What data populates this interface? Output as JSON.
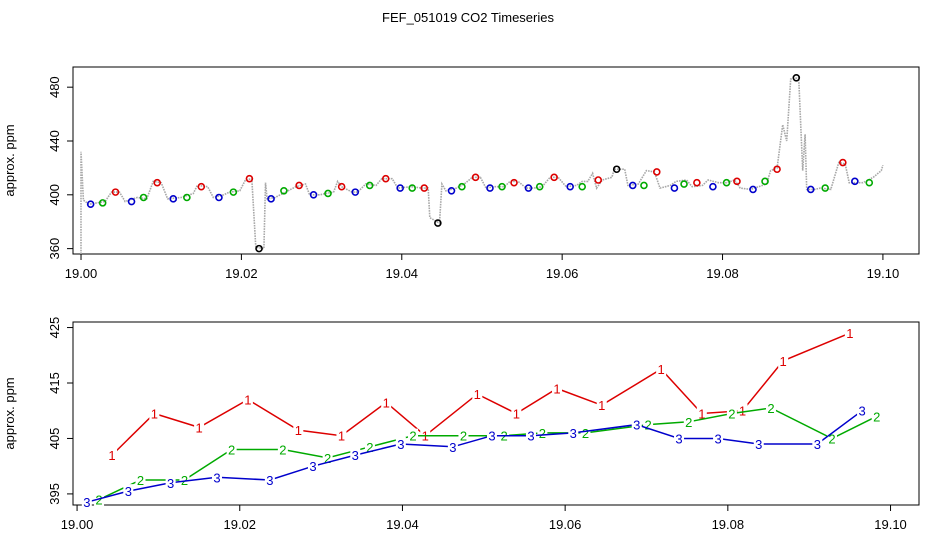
{
  "title": "FEF_051019  CO2 Timeseries",
  "chart_data": [
    {
      "type": "line",
      "name": "top",
      "ylabel": "approx. ppm",
      "xlim": [
        18.999,
        19.1045
      ],
      "ylim": [
        356,
        495
      ],
      "xticks": [
        19.0,
        19.02,
        19.04,
        19.06,
        19.08,
        19.1
      ],
      "xtick_labels": [
        "19.00",
        "19.02",
        "19.04",
        "19.06",
        "19.08",
        "19.10"
      ],
      "yticks": [
        360,
        400,
        440,
        480
      ],
      "ytick_labels": [
        "360",
        "400",
        "440",
        "480"
      ],
      "trace": [
        [
          19.0,
          356
        ],
        [
          19.0,
          432
        ],
        [
          19.0003,
          396
        ],
        [
          19.001,
          393
        ],
        [
          19.002,
          394
        ],
        [
          19.003,
          395
        ],
        [
          19.0038,
          402
        ],
        [
          19.0048,
          402
        ],
        [
          19.0055,
          395
        ],
        [
          19.007,
          398
        ],
        [
          19.0082,
          397
        ],
        [
          19.009,
          410
        ],
        [
          19.01,
          409
        ],
        [
          19.0108,
          397
        ],
        [
          19.0125,
          398
        ],
        [
          19.014,
          401
        ],
        [
          19.0145,
          407
        ],
        [
          19.0158,
          406
        ],
        [
          19.0165,
          398
        ],
        [
          19.0178,
          400
        ],
        [
          19.0185,
          402
        ],
        [
          19.0198,
          403
        ],
        [
          19.0205,
          411
        ],
        [
          19.0213,
          412
        ],
        [
          19.0218,
          361
        ],
        [
          19.0228,
          360
        ],
        [
          19.023,
          409
        ],
        [
          19.0232,
          397
        ],
        [
          19.0242,
          398
        ],
        [
          19.0255,
          402
        ],
        [
          19.0268,
          406
        ],
        [
          19.028,
          408
        ],
        [
          19.0285,
          400
        ],
        [
          19.0298,
          400
        ],
        [
          19.0305,
          401
        ],
        [
          19.0315,
          402
        ],
        [
          19.032,
          410
        ],
        [
          19.0325,
          406
        ],
        [
          19.0338,
          402
        ],
        [
          19.0345,
          402
        ],
        [
          19.0355,
          408
        ],
        [
          19.0368,
          407
        ],
        [
          19.0375,
          412
        ],
        [
          19.0388,
          412
        ],
        [
          19.0395,
          405
        ],
        [
          19.0412,
          406
        ],
        [
          19.0425,
          405
        ],
        [
          19.0433,
          405
        ],
        [
          19.0435,
          383
        ],
        [
          19.0447,
          379
        ],
        [
          19.045,
          408
        ],
        [
          19.0455,
          403
        ],
        [
          19.0468,
          405
        ],
        [
          19.0478,
          408
        ],
        [
          19.0488,
          413
        ],
        [
          19.0498,
          413
        ],
        [
          19.0505,
          405
        ],
        [
          19.0515,
          406
        ],
        [
          19.0528,
          406
        ],
        [
          19.0535,
          410
        ],
        [
          19.0545,
          410
        ],
        [
          19.0555,
          405
        ],
        [
          19.0565,
          405
        ],
        [
          19.0575,
          406
        ],
        [
          19.0585,
          413
        ],
        [
          19.0595,
          413
        ],
        [
          19.0605,
          406
        ],
        [
          19.0618,
          407
        ],
        [
          19.0625,
          410
        ],
        [
          19.0632,
          410
        ],
        [
          19.0638,
          416
        ],
        [
          19.0643,
          405
        ],
        [
          19.065,
          411
        ],
        [
          19.0662,
          413
        ],
        [
          19.0665,
          419
        ],
        [
          19.0678,
          419
        ],
        [
          19.0682,
          407
        ],
        [
          19.0695,
          408
        ],
        [
          19.0705,
          418
        ],
        [
          19.0715,
          417
        ],
        [
          19.0722,
          405
        ],
        [
          19.0735,
          407
        ],
        [
          19.0742,
          410
        ],
        [
          19.0755,
          411
        ],
        [
          19.0762,
          406
        ],
        [
          19.0775,
          407
        ],
        [
          19.0782,
          411
        ],
        [
          19.0795,
          409
        ],
        [
          19.0805,
          409
        ],
        [
          19.0815,
          411
        ],
        [
          19.0822,
          405
        ],
        [
          19.0835,
          404
        ],
        [
          19.0845,
          406
        ],
        [
          19.0855,
          408
        ],
        [
          19.086,
          418
        ],
        [
          19.0868,
          420
        ],
        [
          19.0875,
          452
        ],
        [
          19.088,
          440
        ],
        [
          19.0885,
          486
        ],
        [
          19.0895,
          487
        ],
        [
          19.09,
          418
        ],
        [
          19.0903,
          445
        ],
        [
          19.0905,
          404
        ],
        [
          19.0915,
          404
        ],
        [
          19.0922,
          405
        ],
        [
          19.0935,
          404
        ],
        [
          19.0945,
          424
        ],
        [
          19.0953,
          423
        ],
        [
          19.0958,
          409
        ],
        [
          19.0968,
          409
        ],
        [
          19.0975,
          409
        ],
        [
          19.0988,
          413
        ],
        [
          19.0998,
          418
        ],
        [
          19.1,
          422
        ]
      ],
      "markers": [
        {
          "x": 19.0012,
          "y": 393,
          "color": "#0000cc"
        },
        {
          "x": 19.0027,
          "y": 394,
          "color": "#00aa00"
        },
        {
          "x": 19.0043,
          "y": 402,
          "color": "#dd0000"
        },
        {
          "x": 19.0063,
          "y": 395,
          "color": "#0000cc"
        },
        {
          "x": 19.0078,
          "y": 398,
          "color": "#00aa00"
        },
        {
          "x": 19.0095,
          "y": 409,
          "color": "#dd0000"
        },
        {
          "x": 19.0115,
          "y": 397,
          "color": "#0000cc"
        },
        {
          "x": 19.0132,
          "y": 398,
          "color": "#00aa00"
        },
        {
          "x": 19.015,
          "y": 406,
          "color": "#dd0000"
        },
        {
          "x": 19.0172,
          "y": 398,
          "color": "#0000cc"
        },
        {
          "x": 19.019,
          "y": 402,
          "color": "#00aa00"
        },
        {
          "x": 19.021,
          "y": 412,
          "color": "#dd0000"
        },
        {
          "x": 19.0222,
          "y": 360,
          "color": "#000000"
        },
        {
          "x": 19.0237,
          "y": 397,
          "color": "#0000cc"
        },
        {
          "x": 19.0253,
          "y": 403,
          "color": "#00aa00"
        },
        {
          "x": 19.0272,
          "y": 407,
          "color": "#dd0000"
        },
        {
          "x": 19.029,
          "y": 400,
          "color": "#0000cc"
        },
        {
          "x": 19.0308,
          "y": 401,
          "color": "#00aa00"
        },
        {
          "x": 19.0325,
          "y": 406,
          "color": "#dd0000"
        },
        {
          "x": 19.0342,
          "y": 402,
          "color": "#0000cc"
        },
        {
          "x": 19.036,
          "y": 407,
          "color": "#00aa00"
        },
        {
          "x": 19.038,
          "y": 412,
          "color": "#dd0000"
        },
        {
          "x": 19.0398,
          "y": 405,
          "color": "#0000cc"
        },
        {
          "x": 19.0413,
          "y": 405,
          "color": "#00aa00"
        },
        {
          "x": 19.0428,
          "y": 405,
          "color": "#dd0000"
        },
        {
          "x": 19.0445,
          "y": 379,
          "color": "#000000"
        },
        {
          "x": 19.0462,
          "y": 403,
          "color": "#0000cc"
        },
        {
          "x": 19.0475,
          "y": 406,
          "color": "#00aa00"
        },
        {
          "x": 19.0492,
          "y": 413,
          "color": "#dd0000"
        },
        {
          "x": 19.051,
          "y": 405,
          "color": "#0000cc"
        },
        {
          "x": 19.0525,
          "y": 406,
          "color": "#00aa00"
        },
        {
          "x": 19.054,
          "y": 409,
          "color": "#dd0000"
        },
        {
          "x": 19.0558,
          "y": 405,
          "color": "#0000cc"
        },
        {
          "x": 19.0572,
          "y": 406,
          "color": "#00aa00"
        },
        {
          "x": 19.059,
          "y": 413,
          "color": "#dd0000"
        },
        {
          "x": 19.061,
          "y": 406,
          "color": "#0000cc"
        },
        {
          "x": 19.0625,
          "y": 406,
          "color": "#00aa00"
        },
        {
          "x": 19.0645,
          "y": 411,
          "color": "#dd0000"
        },
        {
          "x": 19.0668,
          "y": 419,
          "color": "#000000"
        },
        {
          "x": 19.0688,
          "y": 407,
          "color": "#0000cc"
        },
        {
          "x": 19.0702,
          "y": 407,
          "color": "#00aa00"
        },
        {
          "x": 19.0718,
          "y": 417,
          "color": "#dd0000"
        },
        {
          "x": 19.074,
          "y": 405,
          "color": "#0000cc"
        },
        {
          "x": 19.0752,
          "y": 408,
          "color": "#00aa00"
        },
        {
          "x": 19.0768,
          "y": 409,
          "color": "#dd0000"
        },
        {
          "x": 19.0788,
          "y": 406,
          "color": "#0000cc"
        },
        {
          "x": 19.0805,
          "y": 409,
          "color": "#00aa00"
        },
        {
          "x": 19.0818,
          "y": 410,
          "color": "#dd0000"
        },
        {
          "x": 19.0838,
          "y": 404,
          "color": "#0000cc"
        },
        {
          "x": 19.0853,
          "y": 410,
          "color": "#00aa00"
        },
        {
          "x": 19.0868,
          "y": 419,
          "color": "#dd0000"
        },
        {
          "x": 19.0892,
          "y": 487,
          "color": "#000000"
        },
        {
          "x": 19.091,
          "y": 404,
          "color": "#0000cc"
        },
        {
          "x": 19.0928,
          "y": 405,
          "color": "#00aa00"
        },
        {
          "x": 19.095,
          "y": 424,
          "color": "#dd0000"
        },
        {
          "x": 19.0965,
          "y": 410,
          "color": "#0000cc"
        },
        {
          "x": 19.0983,
          "y": 409,
          "color": "#00aa00"
        }
      ]
    },
    {
      "type": "line",
      "name": "bottom",
      "ylabel": "approx. ppm",
      "xlim": [
        18.9995,
        19.1035
      ],
      "ylim": [
        393,
        426
      ],
      "xticks": [
        19.0,
        19.02,
        19.04,
        19.06,
        19.08,
        19.1
      ],
      "xtick_labels": [
        "19.00",
        "19.02",
        "19.04",
        "19.06",
        "19.08",
        "19.10"
      ],
      "yticks": [
        395,
        405,
        415,
        425
      ],
      "ytick_labels": [
        "395",
        "405",
        "415",
        "425"
      ],
      "series": [
        {
          "name": "1",
          "color": "#dd0000",
          "x": [
            19.0043,
            19.0095,
            19.015,
            19.021,
            19.0272,
            19.0325,
            19.038,
            19.0428,
            19.0492,
            19.054,
            19.059,
            19.0645,
            19.0718,
            19.0768,
            19.0818,
            19.0868,
            19.095
          ],
          "y": [
            402.0,
            409.5,
            407.0,
            412.0,
            406.5,
            405.5,
            411.5,
            405.5,
            413.0,
            409.5,
            414.0,
            411.0,
            417.5,
            409.5,
            410.0,
            419.0,
            424.0
          ]
        },
        {
          "name": "2",
          "color": "#00aa00",
          "x": [
            19.0027,
            19.0078,
            19.0132,
            19.019,
            19.0253,
            19.0308,
            19.036,
            19.0413,
            19.0475,
            19.0525,
            19.0572,
            19.0625,
            19.0702,
            19.0752,
            19.0805,
            19.0853,
            19.0928,
            19.0983
          ],
          "y": [
            394.0,
            397.5,
            397.5,
            403.0,
            403.0,
            401.5,
            403.5,
            405.5,
            405.5,
            405.5,
            406.0,
            406.0,
            407.5,
            408.0,
            409.5,
            410.5,
            405.0,
            409.0
          ]
        },
        {
          "name": "3",
          "color": "#0000cc",
          "x": [
            19.0012,
            19.0063,
            19.0115,
            19.0172,
            19.0237,
            19.029,
            19.0342,
            19.0398,
            19.0462,
            19.051,
            19.0558,
            19.061,
            19.0688,
            19.074,
            19.0788,
            19.0838,
            19.091,
            19.0965
          ],
          "y": [
            393.5,
            395.5,
            397.0,
            398.0,
            397.5,
            400.0,
            402.0,
            404.0,
            403.5,
            405.5,
            405.5,
            406.0,
            407.5,
            405.0,
            405.0,
            404.0,
            404.0,
            410.0
          ]
        }
      ]
    }
  ]
}
